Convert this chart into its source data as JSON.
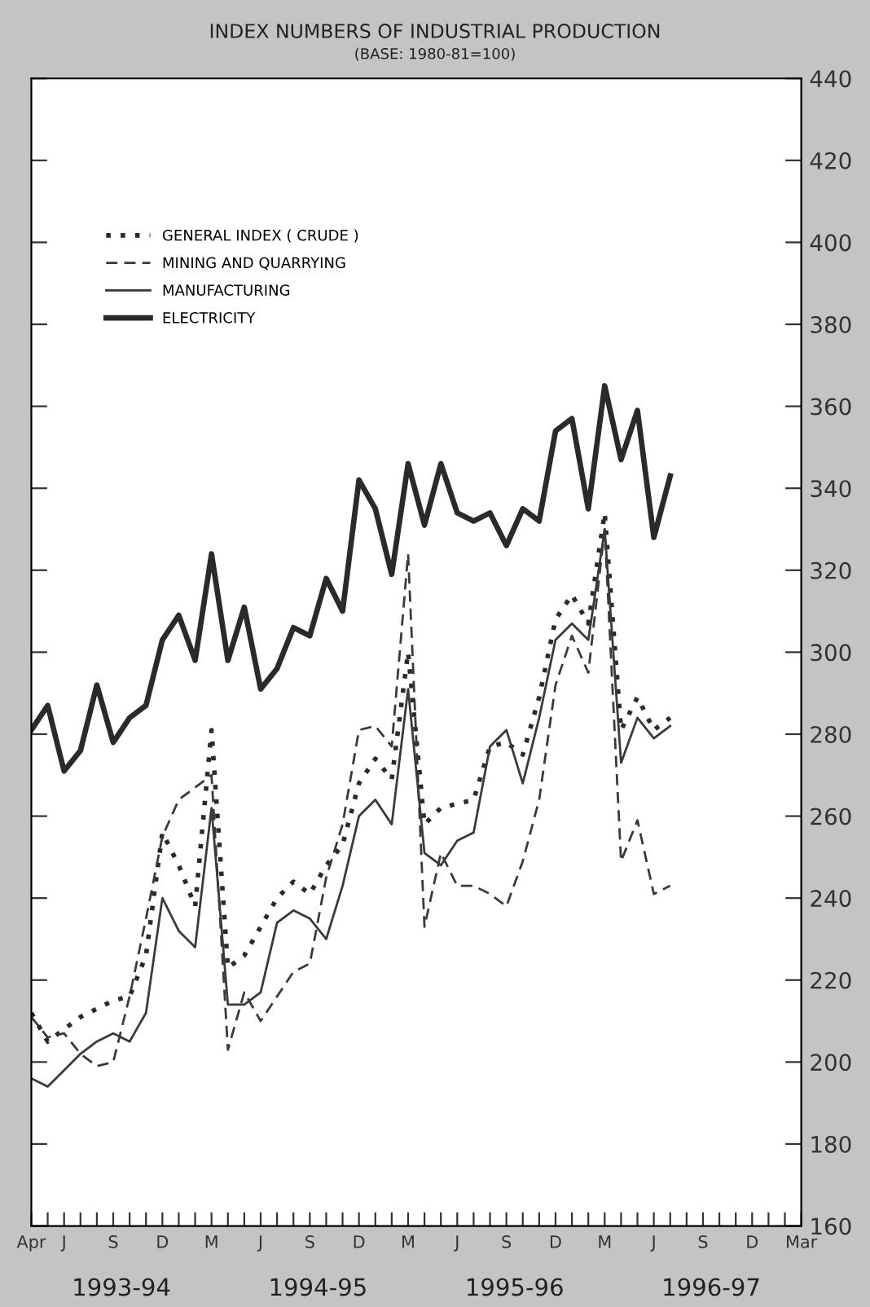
{
  "chart_data": {
    "type": "line",
    "title": "INDEX NUMBERS OF INDUSTRIAL PRODUCTION",
    "subtitle": "(BASE: 1980-81=100)",
    "x": [
      "1993-04",
      "1993-05",
      "1993-06",
      "1993-07",
      "1993-08",
      "1993-09",
      "1993-10",
      "1993-11",
      "1993-12",
      "1994-01",
      "1994-02",
      "1994-03",
      "1994-04",
      "1994-05",
      "1994-06",
      "1994-07",
      "1994-08",
      "1994-09",
      "1994-10",
      "1994-11",
      "1994-12",
      "1995-01",
      "1995-02",
      "1995-03",
      "1995-04",
      "1995-05",
      "1995-06",
      "1995-07",
      "1995-08",
      "1995-09",
      "1995-10",
      "1995-11",
      "1995-12",
      "1996-01",
      "1996-02",
      "1996-03",
      "1996-04",
      "1996-05",
      "1996-06",
      "1996-07"
    ],
    "series": [
      {
        "name": "GENERAL INDEX ( CRUDE )",
        "color": "#2a2a2a",
        "line_style": "dotted",
        "values": [
          212,
          205,
          208,
          211,
          213,
          215,
          216,
          226,
          256,
          248,
          238,
          281,
          223,
          226,
          233,
          240,
          244,
          241,
          248,
          253,
          268,
          274,
          269,
          300,
          258,
          262,
          263,
          264,
          277,
          278,
          275,
          289,
          308,
          314,
          307,
          334,
          281,
          289,
          281,
          284
        ]
      },
      {
        "name": "MINING AND QUARRYING",
        "color": "#3a3a3a",
        "line_style": "dashed",
        "values": [
          211,
          206,
          207,
          202,
          199,
          200,
          216,
          235,
          255,
          264,
          267,
          270,
          203,
          217,
          210,
          216,
          222,
          224,
          245,
          258,
          281,
          282,
          277,
          324,
          233,
          251,
          243,
          243,
          241,
          238,
          249,
          264,
          292,
          304,
          295,
          330,
          249,
          259,
          241,
          243
        ]
      },
      {
        "name": "MANUFACTURING",
        "color": "#3a3a3a",
        "line_style": "solid",
        "values": [
          196,
          194,
          198,
          202,
          205,
          207,
          205,
          212,
          240,
          232,
          228,
          262,
          214,
          214,
          217,
          234,
          237,
          235,
          230,
          243,
          260,
          264,
          258,
          291,
          251,
          248,
          254,
          256,
          277,
          281,
          268,
          284,
          303,
          307,
          303,
          330,
          273,
          284,
          279,
          282
        ]
      },
      {
        "name": "ELECTRICITY",
        "color": "#2a2a2a",
        "line_style": "solid",
        "values": [
          281,
          287,
          271,
          276,
          292,
          278,
          284,
          287,
          303,
          309,
          298,
          324,
          298,
          311,
          291,
          296,
          306,
          304,
          318,
          310,
          342,
          335,
          319,
          346,
          331,
          346,
          334,
          332,
          334,
          326,
          335,
          332,
          354,
          357,
          335,
          365,
          347,
          359,
          328,
          343
        ]
      }
    ],
    "xlim": [
      "1993-04",
      "1997-03"
    ],
    "xticks": [
      {
        "value": "1993-04",
        "label": "Apr"
      },
      {
        "value": "1993-05",
        "label": null
      },
      {
        "value": "1993-06",
        "label": "J"
      },
      {
        "value": "1993-07",
        "label": null
      },
      {
        "value": "1993-08",
        "label": null
      },
      {
        "value": "1993-09",
        "label": "S"
      },
      {
        "value": "1993-10",
        "label": null
      },
      {
        "value": "1993-11",
        "label": null
      },
      {
        "value": "1993-12",
        "label": "D"
      },
      {
        "value": "1994-01",
        "label": null
      },
      {
        "value": "1994-02",
        "label": null
      },
      {
        "value": "1994-03",
        "label": "M"
      },
      {
        "value": "1994-04",
        "label": null
      },
      {
        "value": "1994-05",
        "label": null
      },
      {
        "value": "1994-06",
        "label": "J"
      },
      {
        "value": "1994-07",
        "label": null
      },
      {
        "value": "1994-08",
        "label": null
      },
      {
        "value": "1994-09",
        "label": "S"
      },
      {
        "value": "1994-10",
        "label": null
      },
      {
        "value": "1994-11",
        "label": null
      },
      {
        "value": "1994-12",
        "label": "D"
      },
      {
        "value": "1995-01",
        "label": null
      },
      {
        "value": "1995-02",
        "label": null
      },
      {
        "value": "1995-03",
        "label": "M"
      },
      {
        "value": "1995-04",
        "label": null
      },
      {
        "value": "1995-05",
        "label": null
      },
      {
        "value": "1995-06",
        "label": "J"
      },
      {
        "value": "1995-07",
        "label": null
      },
      {
        "value": "1995-08",
        "label": null
      },
      {
        "value": "1995-09",
        "label": "S"
      },
      {
        "value": "1995-10",
        "label": null
      },
      {
        "value": "1995-11",
        "label": null
      },
      {
        "value": "1995-12",
        "label": "D"
      },
      {
        "value": "1996-01",
        "label": null
      },
      {
        "value": "1996-02",
        "label": null
      },
      {
        "value": "1996-03",
        "label": "M"
      },
      {
        "value": "1996-04",
        "label": null
      },
      {
        "value": "1996-05",
        "label": null
      },
      {
        "value": "1996-06",
        "label": "J"
      },
      {
        "value": "1996-07",
        "label": null
      },
      {
        "value": "1996-08",
        "label": null
      },
      {
        "value": "1996-09",
        "label": "S"
      },
      {
        "value": "1996-10",
        "label": null
      },
      {
        "value": "1996-11",
        "label": null
      },
      {
        "value": "1996-12",
        "label": "D"
      },
      {
        "value": "1997-01",
        "label": null
      },
      {
        "value": "1997-02",
        "label": null
      },
      {
        "value": "1997-03",
        "label": "Mar"
      }
    ],
    "ylim": [
      160,
      440
    ],
    "yticks": [
      160,
      180,
      200,
      220,
      240,
      260,
      280,
      300,
      320,
      340,
      360,
      380,
      400,
      420,
      440
    ],
    "annotations": [
      "1993-94",
      "1994-95",
      "1995-96",
      "1996-97"
    ],
    "legend": "top left",
    "grid": false,
    "marker": "none"
  }
}
